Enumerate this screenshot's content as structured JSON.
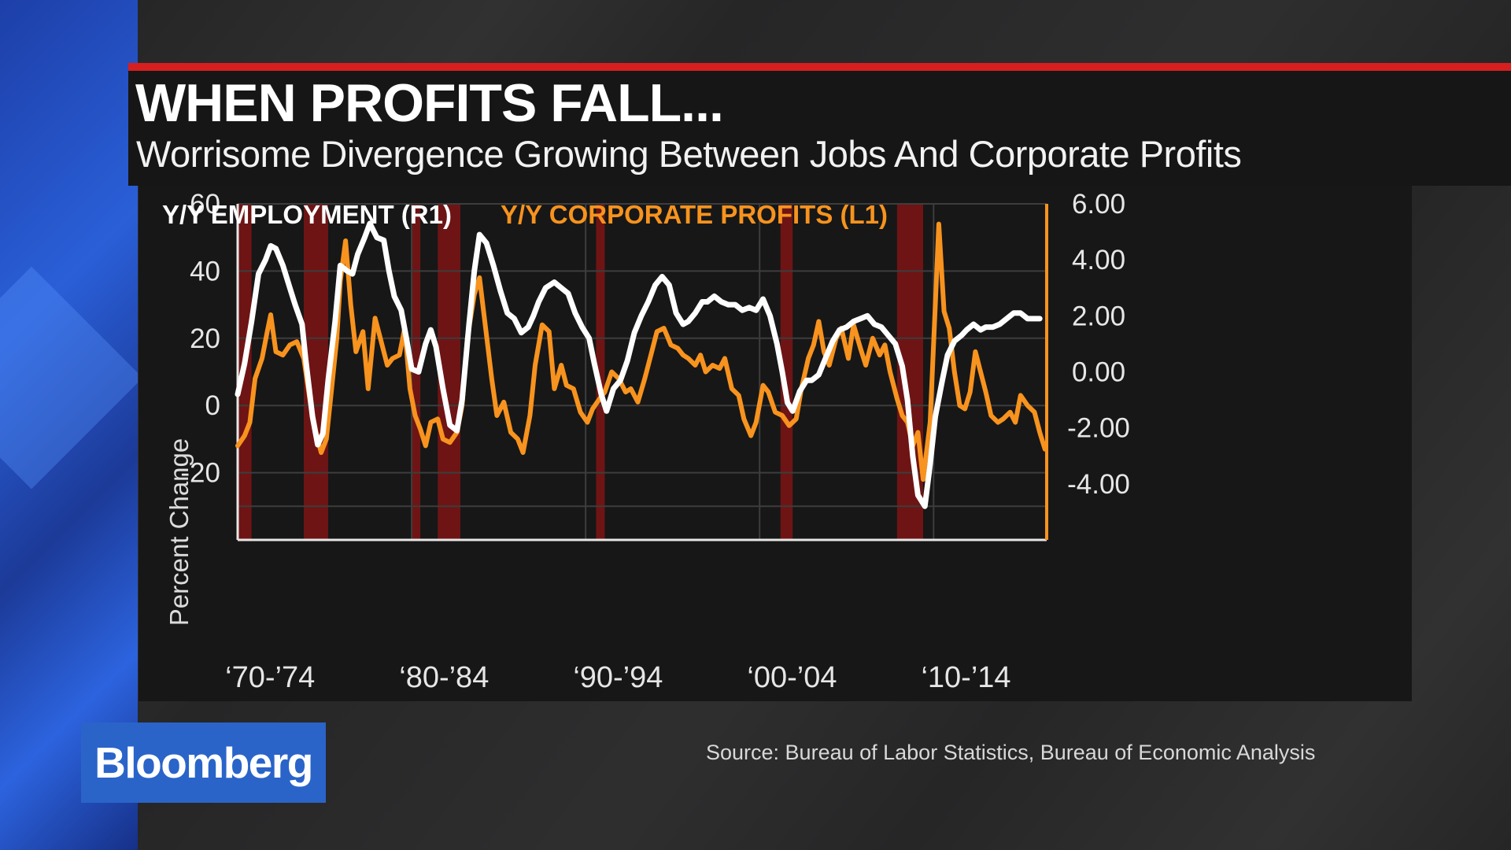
{
  "header": {
    "title": "WHEN PROFITS FALL...",
    "subtitle": "Worrisome Divergence Growing Between Jobs And Corporate Profits"
  },
  "source": "Source: Bureau of Labor Statistics, Bureau of Economic Analysis",
  "logo": "Bloomberg",
  "colors": {
    "accent_red": "#d71f1f",
    "employment": "#ffffff",
    "profits": "#f7931e",
    "recession": "#6e1414",
    "logo_bg": "#2a64c9"
  },
  "chart_data": {
    "type": "line",
    "legend": [
      {
        "label": "Y/Y EMPLOYMENT (R1)",
        "color": "#ffffff"
      },
      {
        "label": "Y/Y CORPORATE PROFITS (L1)",
        "color": "#f7931e"
      }
    ],
    "ylabel_left": "Percent Change",
    "y_left": {
      "range": [
        -40,
        60
      ],
      "ticks": [
        "60",
        "40",
        "20",
        "0",
        "-20"
      ],
      "tick_values": [
        60,
        40,
        20,
        0,
        -20
      ]
    },
    "y_right": {
      "range": [
        -6,
        6
      ],
      "ticks": [
        "6.00",
        "4.00",
        "2.00",
        "0.00",
        "-2.00",
        "-4.00"
      ],
      "tick_values": [
        6,
        4,
        2,
        0,
        -2,
        -4
      ]
    },
    "x_range": [
      1970,
      2016.5
    ],
    "x_ticks": [
      {
        "label": "‘70-’74",
        "year": 1972
      },
      {
        "label": "‘80-’84",
        "year": 1982
      },
      {
        "label": "‘90-’94",
        "year": 1992
      },
      {
        "label": "‘00-’04",
        "year": 2002
      },
      {
        "label": "‘10-’14",
        "year": 2012
      }
    ],
    "grid": true,
    "recessions": [
      [
        1970.0,
        1970.8
      ],
      [
        1973.8,
        1975.2
      ],
      [
        1980.0,
        1980.5
      ],
      [
        1981.5,
        1982.8
      ],
      [
        1990.6,
        1991.1
      ],
      [
        2001.2,
        2001.9
      ],
      [
        2007.9,
        2009.4
      ]
    ],
    "series": [
      {
        "name": "Y/Y EMPLOYMENT (R1)",
        "axis": "right",
        "color": "#ffffff",
        "points": [
          [
            1970.0,
            -0.8
          ],
          [
            1970.4,
            0.3
          ],
          [
            1970.8,
            1.8
          ],
          [
            1971.2,
            3.5
          ],
          [
            1971.6,
            4.0
          ],
          [
            1971.9,
            4.5
          ],
          [
            1972.2,
            4.4
          ],
          [
            1972.6,
            3.8
          ],
          [
            1973.0,
            3.0
          ],
          [
            1973.3,
            2.4
          ],
          [
            1973.7,
            1.7
          ],
          [
            1973.9,
            0.5
          ],
          [
            1974.3,
            -1.6
          ],
          [
            1974.6,
            -2.6
          ],
          [
            1974.9,
            -2.2
          ],
          [
            1975.2,
            -0.3
          ],
          [
            1975.6,
            1.8
          ],
          [
            1975.9,
            3.8
          ],
          [
            1976.3,
            3.6
          ],
          [
            1976.6,
            3.5
          ],
          [
            1976.9,
            4.2
          ],
          [
            1977.3,
            4.8
          ],
          [
            1977.6,
            5.3
          ],
          [
            1978.0,
            4.8
          ],
          [
            1978.4,
            4.7
          ],
          [
            1978.7,
            3.6
          ],
          [
            1979.0,
            2.7
          ],
          [
            1979.4,
            2.2
          ],
          [
            1979.7,
            1.2
          ],
          [
            1980.0,
            0.1
          ],
          [
            1980.4,
            0.0
          ],
          [
            1980.8,
            1.0
          ],
          [
            1981.1,
            1.5
          ],
          [
            1981.4,
            0.9
          ],
          [
            1981.8,
            -0.6
          ],
          [
            1982.2,
            -1.9
          ],
          [
            1982.6,
            -2.1
          ],
          [
            1982.9,
            -1.0
          ],
          [
            1983.3,
            1.7
          ],
          [
            1983.6,
            3.6
          ],
          [
            1983.9,
            4.9
          ],
          [
            1984.3,
            4.6
          ],
          [
            1984.7,
            3.8
          ],
          [
            1985.1,
            2.9
          ],
          [
            1985.5,
            2.1
          ],
          [
            1985.9,
            1.9
          ],
          [
            1986.3,
            1.4
          ],
          [
            1986.7,
            1.6
          ],
          [
            1987.0,
            2.0
          ],
          [
            1987.3,
            2.5
          ],
          [
            1987.7,
            3.0
          ],
          [
            1988.2,
            3.2
          ],
          [
            1988.6,
            3.0
          ],
          [
            1989.0,
            2.8
          ],
          [
            1989.4,
            2.1
          ],
          [
            1989.8,
            1.6
          ],
          [
            1990.2,
            1.2
          ],
          [
            1990.5,
            0.3
          ],
          [
            1990.9,
            -0.8
          ],
          [
            1991.2,
            -1.4
          ],
          [
            1991.6,
            -0.6
          ],
          [
            1992.0,
            -0.3
          ],
          [
            1992.4,
            0.4
          ],
          [
            1992.8,
            1.4
          ],
          [
            1993.2,
            2.0
          ],
          [
            1993.6,
            2.5
          ],
          [
            1994.0,
            3.1
          ],
          [
            1994.4,
            3.4
          ],
          [
            1994.8,
            3.1
          ],
          [
            1995.2,
            2.1
          ],
          [
            1995.6,
            1.7
          ],
          [
            1995.9,
            1.8
          ],
          [
            1996.3,
            2.1
          ],
          [
            1996.7,
            2.5
          ],
          [
            1997.0,
            2.5
          ],
          [
            1997.4,
            2.7
          ],
          [
            1997.8,
            2.5
          ],
          [
            1998.2,
            2.4
          ],
          [
            1998.6,
            2.4
          ],
          [
            1999.0,
            2.2
          ],
          [
            1999.4,
            2.3
          ],
          [
            1999.8,
            2.2
          ],
          [
            2000.2,
            2.6
          ],
          [
            2000.6,
            2.0
          ],
          [
            2001.0,
            1.0
          ],
          [
            2001.3,
            0.0
          ],
          [
            2001.6,
            -1.1
          ],
          [
            2001.9,
            -1.4
          ],
          [
            2002.3,
            -0.7
          ],
          [
            2002.7,
            -0.3
          ],
          [
            2003.0,
            -0.3
          ],
          [
            2003.4,
            -0.1
          ],
          [
            2003.8,
            0.5
          ],
          [
            2004.2,
            1.1
          ],
          [
            2004.6,
            1.5
          ],
          [
            2005.0,
            1.6
          ],
          [
            2005.4,
            1.8
          ],
          [
            2005.8,
            1.9
          ],
          [
            2006.2,
            2.0
          ],
          [
            2006.6,
            1.7
          ],
          [
            2007.0,
            1.6
          ],
          [
            2007.4,
            1.3
          ],
          [
            2007.8,
            1.0
          ],
          [
            2008.2,
            0.2
          ],
          [
            2008.5,
            -1.0
          ],
          [
            2008.8,
            -3.0
          ],
          [
            2009.1,
            -4.4
          ],
          [
            2009.5,
            -4.8
          ],
          [
            2009.8,
            -3.3
          ],
          [
            2010.1,
            -1.6
          ],
          [
            2010.5,
            -0.3
          ],
          [
            2010.8,
            0.6
          ],
          [
            2011.2,
            1.1
          ],
          [
            2011.6,
            1.3
          ],
          [
            2011.9,
            1.5
          ],
          [
            2012.3,
            1.7
          ],
          [
            2012.7,
            1.5
          ],
          [
            2013.0,
            1.6
          ],
          [
            2013.4,
            1.6
          ],
          [
            2013.8,
            1.7
          ],
          [
            2014.2,
            1.9
          ],
          [
            2014.6,
            2.1
          ],
          [
            2015.0,
            2.1
          ],
          [
            2015.4,
            1.9
          ],
          [
            2015.8,
            1.9
          ],
          [
            2016.1,
            1.9
          ]
        ]
      },
      {
        "name": "Y/Y CORPORATE PROFITS (L1)",
        "axis": "left",
        "color": "#f7931e",
        "points": [
          [
            1970.0,
            -12
          ],
          [
            1970.4,
            -9
          ],
          [
            1970.7,
            -5
          ],
          [
            1971.0,
            8
          ],
          [
            1971.4,
            14
          ],
          [
            1971.7,
            22
          ],
          [
            1971.9,
            27
          ],
          [
            1972.2,
            16
          ],
          [
            1972.6,
            15
          ],
          [
            1973.0,
            18
          ],
          [
            1973.4,
            19
          ],
          [
            1973.8,
            14
          ],
          [
            1974.2,
            0
          ],
          [
            1974.5,
            -8
          ],
          [
            1974.8,
            -14
          ],
          [
            1975.1,
            -10
          ],
          [
            1975.4,
            5
          ],
          [
            1975.7,
            20
          ],
          [
            1975.9,
            37
          ],
          [
            1976.2,
            49
          ],
          [
            1976.5,
            30
          ],
          [
            1976.8,
            16
          ],
          [
            1977.2,
            22
          ],
          [
            1977.5,
            5
          ],
          [
            1977.9,
            26
          ],
          [
            1978.2,
            20
          ],
          [
            1978.6,
            12
          ],
          [
            1978.9,
            14
          ],
          [
            1979.3,
            15
          ],
          [
            1979.6,
            23
          ],
          [
            1979.9,
            5
          ],
          [
            1980.2,
            -3
          ],
          [
            1980.5,
            -7
          ],
          [
            1980.8,
            -12
          ],
          [
            1981.1,
            -5
          ],
          [
            1981.5,
            -4
          ],
          [
            1981.8,
            -10
          ],
          [
            1982.2,
            -11
          ],
          [
            1982.6,
            -8
          ],
          [
            1982.9,
            0
          ],
          [
            1983.2,
            20
          ],
          [
            1983.6,
            33
          ],
          [
            1983.9,
            38
          ],
          [
            1984.3,
            21
          ],
          [
            1984.6,
            8
          ],
          [
            1984.9,
            -3
          ],
          [
            1985.3,
            1
          ],
          [
            1985.7,
            -8
          ],
          [
            1986.1,
            -10
          ],
          [
            1986.4,
            -14
          ],
          [
            1986.8,
            -3
          ],
          [
            1987.1,
            12
          ],
          [
            1987.5,
            24
          ],
          [
            1987.9,
            22
          ],
          [
            1988.2,
            5
          ],
          [
            1988.6,
            12
          ],
          [
            1988.9,
            6
          ],
          [
            1989.3,
            5
          ],
          [
            1989.7,
            -2
          ],
          [
            1990.1,
            -5
          ],
          [
            1990.4,
            -1
          ],
          [
            1990.8,
            2
          ],
          [
            1991.1,
            4
          ],
          [
            1991.5,
            10
          ],
          [
            1991.9,
            8
          ],
          [
            1992.3,
            4
          ],
          [
            1992.6,
            5
          ],
          [
            1993.0,
            1
          ],
          [
            1993.4,
            8
          ],
          [
            1993.8,
            16
          ],
          [
            1994.1,
            22
          ],
          [
            1994.5,
            23
          ],
          [
            1994.9,
            18
          ],
          [
            1995.3,
            17
          ],
          [
            1995.6,
            15
          ],
          [
            1995.9,
            14
          ],
          [
            1996.3,
            12
          ],
          [
            1996.6,
            15
          ],
          [
            1996.9,
            10
          ],
          [
            1997.3,
            12
          ],
          [
            1997.7,
            11
          ],
          [
            1998.0,
            14
          ],
          [
            1998.4,
            5
          ],
          [
            1998.8,
            3
          ],
          [
            1999.1,
            -4
          ],
          [
            1999.5,
            -9
          ],
          [
            1999.8,
            -5
          ],
          [
            2000.2,
            6
          ],
          [
            2000.5,
            4
          ],
          [
            2000.9,
            -2
          ],
          [
            2001.3,
            -3
          ],
          [
            2001.7,
            -6
          ],
          [
            2002.1,
            -4
          ],
          [
            2002.4,
            5
          ],
          [
            2002.8,
            14
          ],
          [
            2003.1,
            18
          ],
          [
            2003.4,
            25
          ],
          [
            2003.7,
            16
          ],
          [
            2004.0,
            12
          ],
          [
            2004.4,
            20
          ],
          [
            2004.7,
            23
          ],
          [
            2005.1,
            14
          ],
          [
            2005.4,
            24
          ],
          [
            2005.8,
            17
          ],
          [
            2006.1,
            12
          ],
          [
            2006.5,
            20
          ],
          [
            2006.9,
            15
          ],
          [
            2007.2,
            18
          ],
          [
            2007.5,
            10
          ],
          [
            2007.9,
            2
          ],
          [
            2008.2,
            -3
          ],
          [
            2008.5,
            -5
          ],
          [
            2008.8,
            -12
          ],
          [
            2009.1,
            -8
          ],
          [
            2009.4,
            -22
          ],
          [
            2009.8,
            -5
          ],
          [
            2010.1,
            30
          ],
          [
            2010.3,
            54
          ],
          [
            2010.6,
            28
          ],
          [
            2010.9,
            23
          ],
          [
            2011.2,
            10
          ],
          [
            2011.5,
            0
          ],
          [
            2011.8,
            -1
          ],
          [
            2012.1,
            4
          ],
          [
            2012.4,
            16
          ],
          [
            2012.7,
            10
          ],
          [
            2013.0,
            4
          ],
          [
            2013.3,
            -3
          ],
          [
            2013.7,
            -5
          ],
          [
            2014.0,
            -4
          ],
          [
            2014.4,
            -2
          ],
          [
            2014.7,
            -5
          ],
          [
            2015.0,
            3
          ],
          [
            2015.4,
            0
          ],
          [
            2015.8,
            -2
          ],
          [
            2016.1,
            -8
          ],
          [
            2016.4,
            -13
          ]
        ]
      }
    ]
  }
}
